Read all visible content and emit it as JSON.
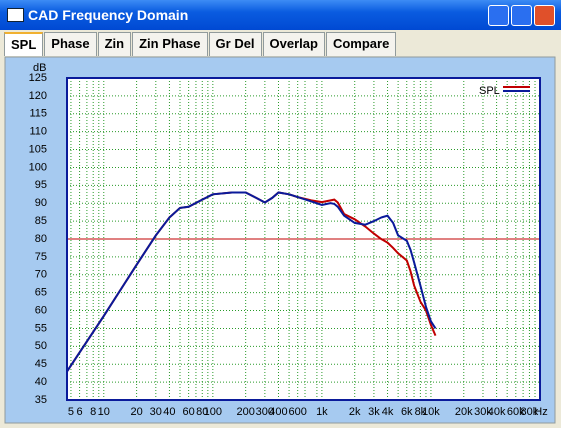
{
  "window": {
    "title": "CAD Frequency Domain"
  },
  "tabs": [
    "SPL",
    "Phase",
    "Zin",
    "Zin Phase",
    "Gr Del",
    "Overlap",
    "Compare"
  ],
  "active_tab": 0,
  "chart_data": {
    "type": "line",
    "y_unit": "dB",
    "x_unit": "Hz",
    "log_x": true,
    "grid": true,
    "x": [
      4.6,
      10,
      20,
      30,
      40,
      50,
      60,
      80,
      100,
      150,
      200,
      250,
      300,
      350,
      400,
      500,
      600,
      800,
      1000,
      1200,
      1300,
      1400,
      1600,
      2000,
      2500,
      3000,
      3500,
      4000,
      4500,
      5000,
      6000,
      6500,
      7000,
      8000,
      9000,
      10000,
      11000
    ],
    "series": [
      {
        "name": "SPL",
        "color": "#c00000",
        "values": [
          43,
          58.5,
          72.8,
          81,
          86,
          88.7,
          89,
          91,
          92.5,
          93,
          93,
          91.5,
          90.2,
          91.5,
          93,
          92.5,
          91.7,
          90.8,
          90.3,
          90.8,
          91,
          90.2,
          87,
          85.5,
          83.5,
          81.5,
          80,
          79,
          77.5,
          76,
          74,
          71,
          67,
          62.5,
          60,
          56,
          53
        ]
      },
      {
        "color": "#0a1a9a",
        "values": [
          43,
          58.5,
          72.8,
          81,
          86,
          88.7,
          89,
          91,
          92.5,
          93,
          93,
          91.5,
          90.2,
          91.5,
          93,
          92.5,
          91.7,
          90.5,
          89.5,
          90,
          89.8,
          89,
          86.5,
          84.5,
          84,
          85,
          86,
          86.5,
          84.5,
          81,
          79.5,
          77,
          73.5,
          67,
          61,
          57,
          55
        ]
      }
    ],
    "hline": {
      "value": 80,
      "color": "#c00000"
    },
    "xlim": [
      4.6,
      100000
    ],
    "ylim": [
      35,
      125
    ],
    "xticks": [
      5,
      6,
      8,
      10,
      20,
      30,
      40,
      60,
      80,
      100,
      200,
      300,
      400,
      600,
      {
        "value": 1000,
        "label": "1k"
      },
      {
        "value": 2000,
        "label": "2k"
      },
      {
        "value": 3000,
        "label": "3k"
      },
      {
        "value": 4000,
        "label": "4k"
      },
      {
        "value": 6000,
        "label": "6k"
      },
      {
        "value": 8000,
        "label": "8k"
      },
      {
        "value": 10000,
        "label": "10k"
      },
      {
        "value": 20000,
        "label": "20k"
      },
      {
        "value": 30000,
        "label": "30k"
      },
      {
        "value": 40000,
        "label": "40k"
      },
      {
        "value": 60000,
        "label": "60k"
      },
      {
        "value": 80000,
        "label": "80k"
      }
    ],
    "xminor": [
      7,
      9,
      50,
      70,
      90,
      500,
      700,
      900,
      5000,
      7000,
      9000,
      50000,
      70000,
      90000
    ],
    "yticks": [
      35,
      40,
      45,
      50,
      55,
      60,
      65,
      70,
      75,
      80,
      85,
      90,
      95,
      100,
      105,
      110,
      115,
      120,
      125
    ]
  }
}
